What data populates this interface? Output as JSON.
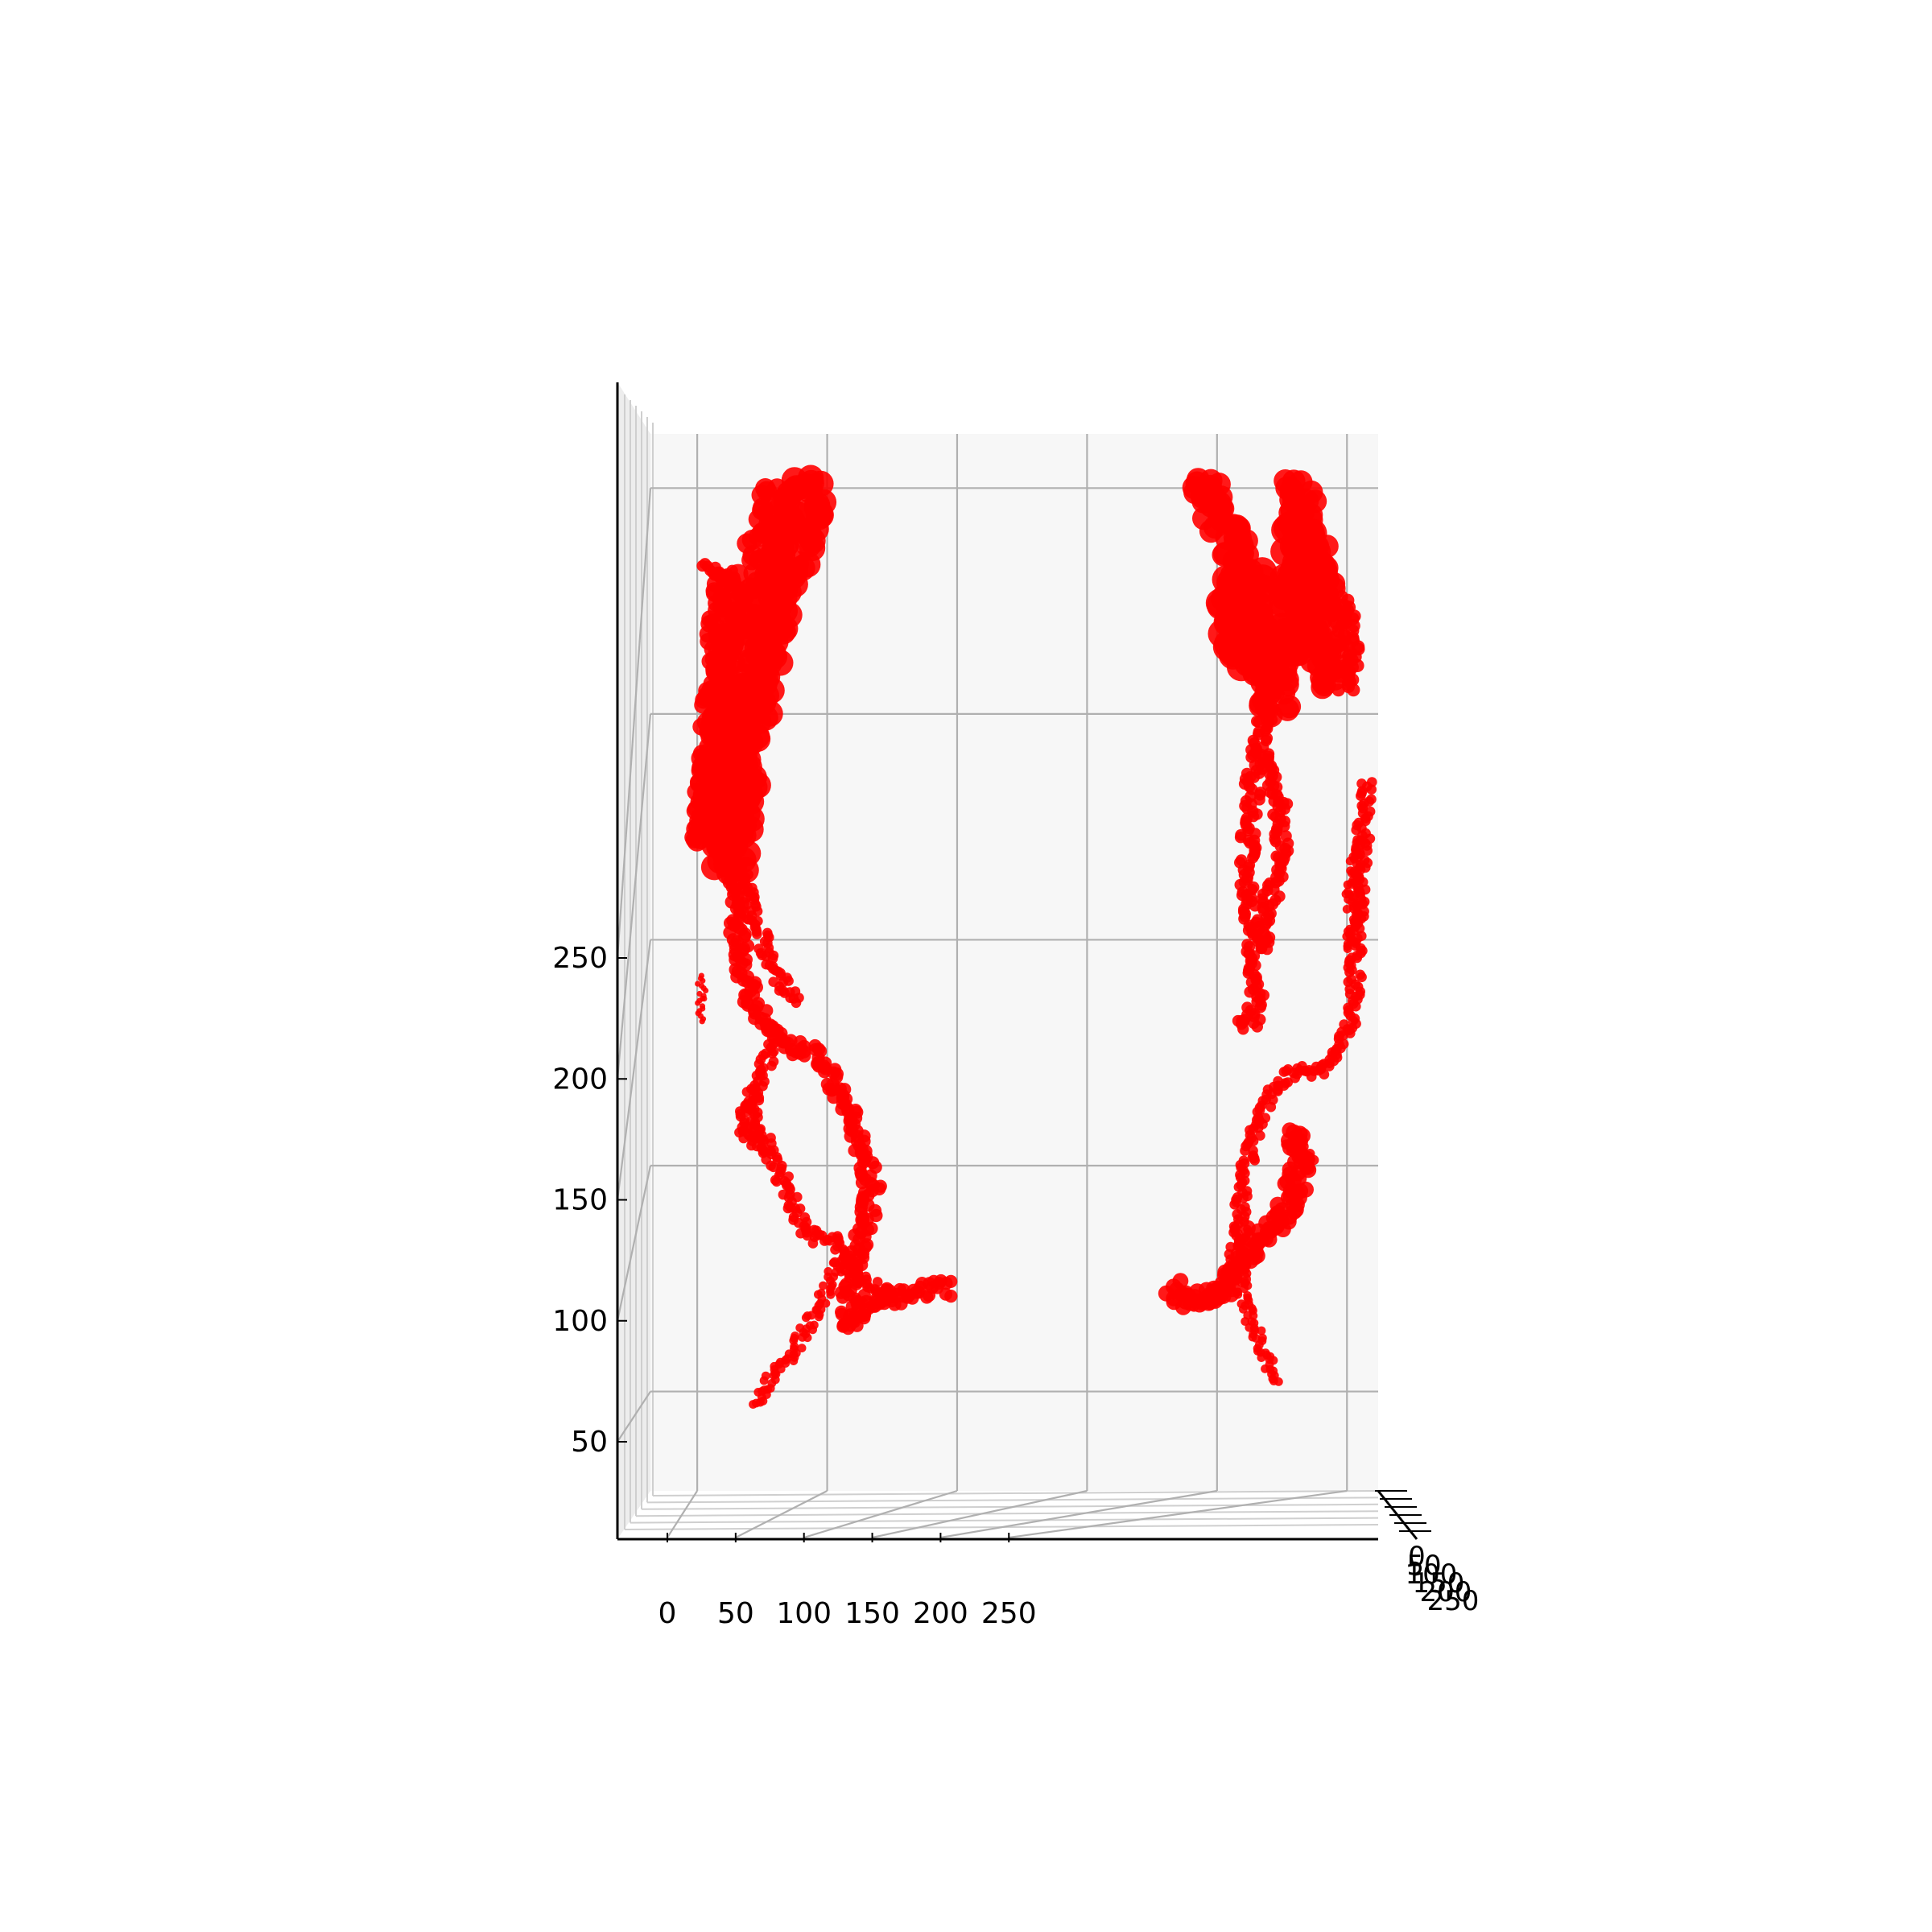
{
  "chart_data": {
    "type": "scatter",
    "projection": "3d",
    "title": "",
    "xlabel": "",
    "ylabel": "",
    "zlabel": "",
    "x_ticks": [
      "0",
      "50",
      "100",
      "150",
      "200",
      "250"
    ],
    "z_ticks": [
      "50",
      "100",
      "150",
      "200",
      "250"
    ],
    "y_ticks": [
      "0",
      "50",
      "100",
      "150",
      "200",
      "250"
    ],
    "xlim": [
      -18,
      262
    ],
    "zlim": [
      28,
      262
    ],
    "grid": true,
    "marker_color": "#ff0000",
    "pane_color": "#f7f7f7",
    "grid_color": "#b0b0b0",
    "series": [
      {
        "strokes": [
          {
            "w": 18,
            "pts": [
              [
                45,
                252
              ],
              [
                41,
                245
              ],
              [
                35,
                232
              ],
              [
                28,
                220
              ],
              [
                22,
                205
              ],
              [
                18,
                190
              ],
              [
                15,
                175
              ],
              [
                12,
                165
              ]
            ]
          },
          {
            "w": 14,
            "pts": [
              [
                30,
                250
              ],
              [
                26,
                240
              ],
              [
                20,
                228
              ],
              [
                14,
                215
              ],
              [
                9,
                200
              ],
              [
                6,
                185
              ],
              [
                4,
                170
              ]
            ]
          },
          {
            "w": 12,
            "pts": [
              [
                12,
                230
              ],
              [
                9,
                218
              ],
              [
                7,
                205
              ],
              [
                5,
                190
              ],
              [
                3,
                172
              ]
            ]
          },
          {
            "w": 8,
            "pts": [
              [
                2,
                232
              ],
              [
                8,
                232
              ],
              [
                14,
                230
              ]
            ]
          },
          {
            "w": 7,
            "pts": [
              [
                14,
                170
              ],
              [
                18,
                162
              ],
              [
                22,
                155
              ],
              [
                27,
                147
              ],
              [
                33,
                140
              ],
              [
                38,
                136
              ]
            ]
          },
          {
            "w": 9,
            "pts": [
              [
                12,
                168
              ],
              [
                15,
                158
              ],
              [
                16,
                148
              ],
              [
                20,
                138
              ],
              [
                26,
                130
              ],
              [
                33,
                127
              ],
              [
                41,
                126
              ],
              [
                48,
                123
              ],
              [
                53,
                117
              ],
              [
                59,
                110
              ],
              [
                64,
                103
              ],
              [
                67,
                95
              ],
              [
                66,
                88
              ],
              [
                61,
                80
              ],
              [
                58,
                72
              ],
              [
                59,
                64
              ],
              [
                62,
                68
              ],
              [
                67,
                70
              ],
              [
                72,
                71
              ],
              [
                78,
                71
              ],
              [
                98,
                73
              ]
            ]
          },
          {
            "w": 7,
            "pts": [
              [
                30,
                128
              ],
              [
                25,
                120
              ],
              [
                20,
                113
              ],
              [
                17,
                108
              ],
              [
                22,
                106
              ],
              [
                28,
                103
              ],
              [
                33,
                97
              ],
              [
                37,
                91
              ],
              [
                41,
                86
              ],
              [
                46,
                84
              ],
              [
                52,
                84
              ],
              [
                55,
                79
              ],
              [
                58,
                77
              ],
              [
                62,
                76
              ],
              [
                69,
                73
              ],
              [
                76,
                72
              ]
            ]
          },
          {
            "w": 7,
            "pts": [
              [
                21,
                117
              ],
              [
                23,
                108
              ],
              [
                28,
                104
              ]
            ]
          },
          {
            "w": 6,
            "pts": [
              [
                55,
                79
              ],
              [
                50,
                73
              ],
              [
                46,
                68
              ],
              [
                41,
                63
              ],
              [
                36,
                58
              ],
              [
                30,
                54
              ],
              [
                25,
                50
              ],
              [
                22,
                47
              ]
            ]
          },
          {
            "w": 4,
            "pts": [
              [
                1,
                142
              ],
              [
                2,
                137
              ],
              [
                1,
                132
              ]
            ]
          }
        ]
      },
      {
        "strokes": [
          {
            "w": 16,
            "pts": [
              [
                193,
                252
              ],
              [
                200,
                245
              ],
              [
                206,
                236
              ],
              [
                211,
                226
              ],
              [
                215,
                218
              ],
              [
                220,
                210
              ],
              [
                224,
                200
              ]
            ]
          },
          {
            "w": 16,
            "pts": [
              [
                229,
                252
              ],
              [
                233,
                243
              ],
              [
                238,
                232
              ],
              [
                241,
                220
              ],
              [
                243,
                206
              ]
            ]
          },
          {
            "w": 20,
            "pts": [
              [
                210,
                232
              ],
              [
                208,
                222
              ],
              [
                212,
                214
              ],
              [
                220,
                212
              ],
              [
                228,
                216
              ],
              [
                232,
                224
              ],
              [
                234,
                232
              ],
              [
                233,
                242
              ]
            ]
          },
          {
            "w": 9,
            "pts": [
              [
                248,
                226
              ],
              [
                252,
                212
              ],
              [
                250,
                205
              ]
            ]
          },
          {
            "w": 8,
            "pts": [
              [
                223,
                210
              ],
              [
                218,
                198
              ],
              [
                214,
                186
              ],
              [
                212,
                172
              ],
              [
                212,
                160
              ],
              [
                214,
                148
              ],
              [
                215,
                138
              ],
              [
                213,
                131
              ],
              [
                210,
                133
              ]
            ]
          },
          {
            "w": 8,
            "pts": [
              [
                216,
                192
              ],
              [
                224,
                180
              ],
              [
                225,
                168
              ],
              [
                220,
                158
              ],
              [
                218,
                148
              ]
            ]
          },
          {
            "w": 7,
            "pts": [
              [
                258,
                185
              ],
              [
                256,
                172
              ],
              [
                254,
                158
              ],
              [
                253,
                146
              ],
              [
                253,
                138
              ],
              [
                251,
                130
              ],
              [
                246,
                124
              ],
              [
                240,
                121
              ],
              [
                230,
                121
              ],
              [
                222,
                118
              ],
              [
                216,
                110
              ],
              [
                212,
                102
              ],
              [
                209,
                93
              ],
              [
                209,
                86
              ]
            ]
          },
          {
            "w": 6,
            "pts": [
              [
                254,
                172
              ],
              [
                252,
                160
              ],
              [
                251,
                148
              ]
            ]
          },
          {
            "w": 11,
            "pts": [
              [
                230,
                108
              ],
              [
                232,
                101
              ],
              [
                230,
                94
              ],
              [
                225,
                89
              ],
              [
                220,
                86
              ],
              [
                214,
                84
              ],
              [
                211,
                80
              ],
              [
                207,
                75
              ],
              [
                202,
                72
              ],
              [
                196,
                71
              ],
              [
                187,
                71
              ],
              [
                182,
                73
              ]
            ]
          },
          {
            "w": 7,
            "pts": [
              [
                236,
                100
              ],
              [
                232,
                103
              ],
              [
                228,
                106
              ]
            ]
          },
          {
            "w": 6,
            "pts": [
              [
                210,
                86
              ],
              [
                209,
                77
              ],
              [
                211,
                69
              ],
              [
                215,
                63
              ],
              [
                219,
                58
              ],
              [
                223,
                52
              ]
            ]
          },
          {
            "w": 7,
            "pts": [
              [
                209,
                86
              ],
              [
                206,
                78
              ],
              [
                203,
                73
              ],
              [
                197,
                70
              ],
              [
                191,
                69
              ]
            ]
          },
          {
            "w": 5,
            "pts": [
              [
                194,
                69
              ],
              [
                191,
                70
              ],
              [
                184,
                72
              ]
            ]
          }
        ]
      }
    ]
  }
}
